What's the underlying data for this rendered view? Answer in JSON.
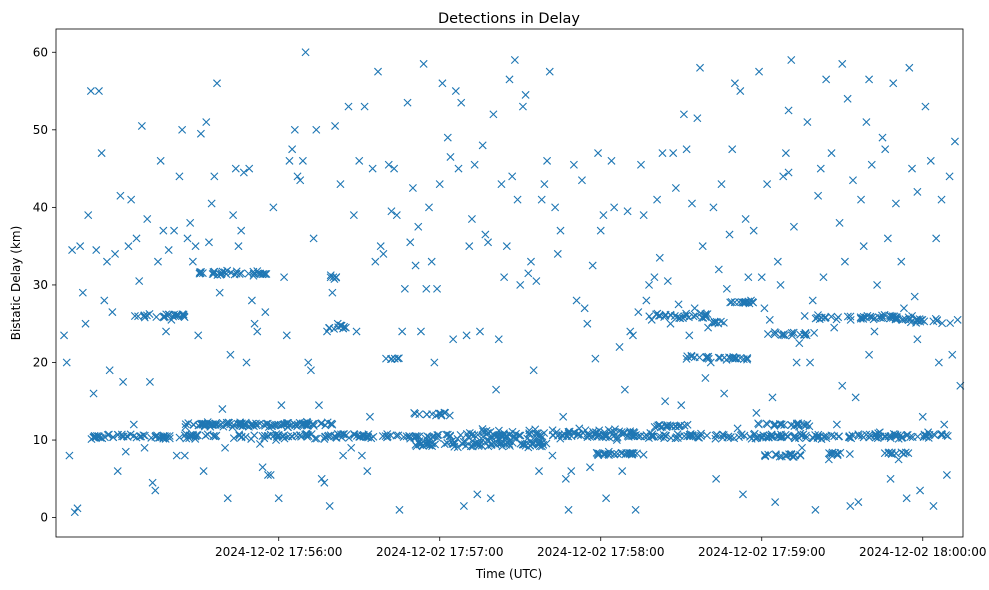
{
  "chart_data": {
    "type": "scatter",
    "title": "Detections in Delay",
    "xlabel": "Time (UTC)",
    "ylabel": "Bistatic Delay (km)",
    "marker": "x",
    "color": "#1f77b4",
    "xlim_seconds_from_17_55_00": [
      -23,
      315
    ],
    "ylim": [
      -2.5,
      63
    ],
    "x_ticks": [
      {
        "t": 60,
        "label": "2024-12-02 17:56:00"
      },
      {
        "t": 120,
        "label": "2024-12-02 17:57:00"
      },
      {
        "t": 180,
        "label": "2024-12-02 17:58:00"
      },
      {
        "t": 240,
        "label": "2024-12-02 17:59:00"
      },
      {
        "t": 300,
        "label": "2024-12-02 18:00:00"
      }
    ],
    "y_ticks": [
      0,
      10,
      20,
      30,
      40,
      50,
      60
    ],
    "bands": [
      {
        "t0": -10,
        "t1": 310,
        "y": 10.5,
        "jitter": 0.4,
        "count": 420
      },
      {
        "t0": 25,
        "t1": 80,
        "y": 12.0,
        "jitter": 0.4,
        "count": 110
      },
      {
        "t0": 110,
        "t1": 160,
        "y": 9.5,
        "jitter": 0.5,
        "count": 90
      },
      {
        "t0": 130,
        "t1": 200,
        "y": 11.0,
        "jitter": 0.5,
        "count": 60
      },
      {
        "t0": 178,
        "t1": 196,
        "y": 8.2,
        "jitter": 0.2,
        "count": 30
      },
      {
        "t0": 200,
        "t1": 213,
        "y": 11.8,
        "jitter": 0.2,
        "count": 20
      },
      {
        "t0": 238,
        "t1": 258,
        "y": 12.0,
        "jitter": 0.3,
        "count": 25
      },
      {
        "t0": 240,
        "t1": 255,
        "y": 8.0,
        "jitter": 0.3,
        "count": 20
      },
      {
        "t0": 265,
        "t1": 275,
        "y": 8.2,
        "jitter": 0.2,
        "count": 10
      },
      {
        "t0": 285,
        "t1": 295,
        "y": 8.3,
        "jitter": 0.2,
        "count": 10
      },
      {
        "t0": 5,
        "t1": 25,
        "y": 26.0,
        "jitter": 0.4,
        "count": 25
      },
      {
        "t0": 28,
        "t1": 56,
        "y": 31.5,
        "jitter": 0.4,
        "count": 35
      },
      {
        "t0": 78,
        "t1": 85,
        "y": 24.5,
        "jitter": 0.3,
        "count": 10
      },
      {
        "t0": 78,
        "t1": 83,
        "y": 31.0,
        "jitter": 0.3,
        "count": 6
      },
      {
        "t0": 100,
        "t1": 105,
        "y": 20.5,
        "jitter": 0.2,
        "count": 5
      },
      {
        "t0": 110,
        "t1": 125,
        "y": 13.3,
        "jitter": 0.3,
        "count": 14
      },
      {
        "t0": 198,
        "t1": 220,
        "y": 26.0,
        "jitter": 0.4,
        "count": 30
      },
      {
        "t0": 210,
        "t1": 225,
        "y": 20.6,
        "jitter": 0.3,
        "count": 15
      },
      {
        "t0": 220,
        "t1": 226,
        "y": 25.2,
        "jitter": 0.2,
        "count": 8
      },
      {
        "t0": 228,
        "t1": 240,
        "y": 27.8,
        "jitter": 0.2,
        "count": 14
      },
      {
        "t0": 225,
        "t1": 236,
        "y": 20.5,
        "jitter": 0.3,
        "count": 15
      },
      {
        "t0": 242,
        "t1": 260,
        "y": 23.7,
        "jitter": 0.3,
        "count": 18
      },
      {
        "t0": 260,
        "t1": 298,
        "y": 25.8,
        "jitter": 0.4,
        "count": 50
      },
      {
        "t0": 295,
        "t1": 312,
        "y": 25.3,
        "jitter": 0.4,
        "count": 15
      }
    ],
    "scatter_points": [
      [
        -20,
        23.5
      ],
      [
        -19,
        20
      ],
      [
        -18,
        8
      ],
      [
        -17,
        34.5
      ],
      [
        -16,
        0.7
      ],
      [
        -15,
        1.2
      ],
      [
        -14,
        35
      ],
      [
        -13,
        29
      ],
      [
        -12,
        25
      ],
      [
        -11,
        39
      ],
      [
        -10,
        55
      ],
      [
        -9,
        16
      ],
      [
        -8,
        34.5
      ],
      [
        -7,
        55
      ],
      [
        -6,
        47
      ],
      [
        -5,
        28
      ],
      [
        -4,
        33
      ],
      [
        -3,
        19
      ],
      [
        -2,
        26.5
      ],
      [
        -1,
        34
      ],
      [
        0,
        6
      ],
      [
        1,
        41.5
      ],
      [
        2,
        17.5
      ],
      [
        3,
        8.5
      ],
      [
        4,
        35
      ],
      [
        5,
        41
      ],
      [
        6,
        12
      ],
      [
        7,
        36
      ],
      [
        8,
        30.5
      ],
      [
        9,
        50.5
      ],
      [
        10,
        9
      ],
      [
        11,
        38.5
      ],
      [
        12,
        17.5
      ],
      [
        13,
        4.5
      ],
      [
        14,
        3.5
      ],
      [
        15,
        33
      ],
      [
        16,
        46
      ],
      [
        17,
        37
      ],
      [
        18,
        24
      ],
      [
        19,
        34.5
      ],
      [
        20,
        25.5
      ],
      [
        21,
        37
      ],
      [
        22,
        8
      ],
      [
        23,
        44
      ],
      [
        24,
        50
      ],
      [
        25,
        8
      ],
      [
        26,
        36
      ],
      [
        27,
        38
      ],
      [
        28,
        33
      ],
      [
        29,
        35
      ],
      [
        30,
        23.5
      ],
      [
        31,
        49.5
      ],
      [
        32,
        6
      ],
      [
        33,
        51
      ],
      [
        34,
        35.5
      ],
      [
        35,
        40.5
      ],
      [
        36,
        44
      ],
      [
        37,
        56
      ],
      [
        38,
        29
      ],
      [
        39,
        14
      ],
      [
        40,
        9
      ],
      [
        41,
        2.5
      ],
      [
        42,
        21
      ],
      [
        43,
        39
      ],
      [
        44,
        45
      ],
      [
        45,
        35
      ],
      [
        46,
        37
      ],
      [
        47,
        44.5
      ],
      [
        48,
        20
      ],
      [
        49,
        45
      ],
      [
        50,
        28
      ],
      [
        51,
        25
      ],
      [
        52,
        24
      ],
      [
        53,
        9.5
      ],
      [
        54,
        6.5
      ],
      [
        55,
        26.5
      ],
      [
        56,
        5.5
      ],
      [
        57,
        5.5
      ],
      [
        58,
        40
      ],
      [
        59,
        10
      ],
      [
        60,
        2.5
      ],
      [
        61,
        14.5
      ],
      [
        62,
        31
      ],
      [
        63,
        23.5
      ],
      [
        64,
        46
      ],
      [
        65,
        47.5
      ],
      [
        66,
        50
      ],
      [
        67,
        44
      ],
      [
        68,
        43.5
      ],
      [
        69,
        46
      ],
      [
        70,
        60
      ],
      [
        71,
        20
      ],
      [
        72,
        19
      ],
      [
        73,
        36
      ],
      [
        74,
        50
      ],
      [
        75,
        14.5
      ],
      [
        76,
        5
      ],
      [
        77,
        4.5
      ],
      [
        78,
        24
      ],
      [
        79,
        1.5
      ],
      [
        80,
        29
      ],
      [
        81,
        50.5
      ],
      [
        82,
        25
      ],
      [
        83,
        43
      ],
      [
        84,
        8
      ],
      [
        85,
        24.5
      ],
      [
        86,
        53
      ],
      [
        87,
        9
      ],
      [
        88,
        39
      ],
      [
        89,
        24
      ],
      [
        90,
        46
      ],
      [
        91,
        8
      ],
      [
        92,
        53
      ],
      [
        93,
        6
      ],
      [
        94,
        13
      ],
      [
        95,
        45
      ],
      [
        96,
        33
      ],
      [
        97,
        57.5
      ],
      [
        98,
        35
      ],
      [
        99,
        34
      ],
      [
        100,
        20.5
      ],
      [
        101,
        45.5
      ],
      [
        102,
        39.5
      ],
      [
        103,
        45
      ],
      [
        104,
        39
      ],
      [
        105,
        1
      ],
      [
        106,
        24
      ],
      [
        107,
        29.5
      ],
      [
        108,
        53.5
      ],
      [
        109,
        35.5
      ],
      [
        110,
        42.5
      ],
      [
        111,
        32.5
      ],
      [
        112,
        37.5
      ],
      [
        113,
        24
      ],
      [
        114,
        58.5
      ],
      [
        115,
        29.5
      ],
      [
        116,
        40
      ],
      [
        117,
        33
      ],
      [
        118,
        20
      ],
      [
        119,
        29.5
      ],
      [
        120,
        43
      ],
      [
        121,
        56
      ],
      [
        122,
        13.5
      ],
      [
        123,
        49
      ],
      [
        124,
        46.5
      ],
      [
        125,
        23
      ],
      [
        126,
        55
      ],
      [
        127,
        45
      ],
      [
        128,
        53.5
      ],
      [
        129,
        1.5
      ],
      [
        130,
        23.5
      ],
      [
        131,
        35
      ],
      [
        132,
        38.5
      ],
      [
        133,
        45.5
      ],
      [
        134,
        3
      ],
      [
        135,
        24
      ],
      [
        136,
        48
      ],
      [
        137,
        36.5
      ],
      [
        138,
        35.5
      ],
      [
        139,
        2.5
      ],
      [
        140,
        52
      ],
      [
        141,
        16.5
      ],
      [
        142,
        23
      ],
      [
        143,
        43
      ],
      [
        144,
        31
      ],
      [
        145,
        35
      ],
      [
        146,
        56.5
      ],
      [
        147,
        44
      ],
      [
        148,
        59
      ],
      [
        149,
        41
      ],
      [
        150,
        30
      ],
      [
        151,
        53
      ],
      [
        152,
        54.5
      ],
      [
        153,
        31.5
      ],
      [
        154,
        33
      ],
      [
        155,
        19
      ],
      [
        156,
        30.5
      ],
      [
        157,
        6
      ],
      [
        158,
        41
      ],
      [
        159,
        43
      ],
      [
        160,
        46
      ],
      [
        161,
        57.5
      ],
      [
        162,
        8
      ],
      [
        163,
        40
      ],
      [
        164,
        34
      ],
      [
        165,
        37
      ],
      [
        166,
        13
      ],
      [
        167,
        5
      ],
      [
        168,
        1
      ],
      [
        169,
        6
      ],
      [
        170,
        45.5
      ],
      [
        171,
        28
      ],
      [
        172,
        11.5
      ],
      [
        173,
        43.5
      ],
      [
        174,
        27
      ],
      [
        175,
        25
      ],
      [
        176,
        6.5
      ],
      [
        177,
        32.5
      ],
      [
        178,
        20.5
      ],
      [
        179,
        47
      ],
      [
        180,
        37
      ],
      [
        181,
        39
      ],
      [
        182,
        2.5
      ],
      [
        183,
        8.5
      ],
      [
        184,
        46
      ],
      [
        185,
        40
      ],
      [
        186,
        10
      ],
      [
        187,
        22
      ],
      [
        188,
        6
      ],
      [
        189,
        16.5
      ],
      [
        190,
        39.5
      ],
      [
        191,
        24
      ],
      [
        192,
        23.5
      ],
      [
        193,
        1
      ],
      [
        194,
        26.5
      ],
      [
        195,
        45.5
      ],
      [
        196,
        39
      ],
      [
        197,
        28
      ],
      [
        198,
        30
      ],
      [
        199,
        25.5
      ],
      [
        200,
        31
      ],
      [
        201,
        41
      ],
      [
        202,
        33.5
      ],
      [
        203,
        47
      ],
      [
        204,
        15
      ],
      [
        205,
        30.5
      ],
      [
        206,
        25
      ],
      [
        207,
        47
      ],
      [
        208,
        42.5
      ],
      [
        209,
        27.5
      ],
      [
        210,
        14.5
      ],
      [
        211,
        52
      ],
      [
        212,
        47.5
      ],
      [
        213,
        23.5
      ],
      [
        214,
        40.5
      ],
      [
        215,
        27
      ],
      [
        216,
        51.5
      ],
      [
        217,
        58
      ],
      [
        218,
        35
      ],
      [
        219,
        18
      ],
      [
        220,
        24.5
      ],
      [
        221,
        20
      ],
      [
        222,
        40
      ],
      [
        223,
        5
      ],
      [
        224,
        32
      ],
      [
        225,
        43
      ],
      [
        226,
        16
      ],
      [
        227,
        29.5
      ],
      [
        228,
        36.5
      ],
      [
        229,
        47.5
      ],
      [
        230,
        56
      ],
      [
        231,
        11.5
      ],
      [
        232,
        55
      ],
      [
        233,
        3
      ],
      [
        234,
        38.5
      ],
      [
        235,
        31
      ],
      [
        236,
        28
      ],
      [
        237,
        37
      ],
      [
        238,
        13.5
      ],
      [
        239,
        57.5
      ],
      [
        240,
        31
      ],
      [
        241,
        27
      ],
      [
        242,
        43
      ],
      [
        243,
        25.5
      ],
      [
        244,
        15.5
      ],
      [
        245,
        2
      ],
      [
        246,
        33
      ],
      [
        247,
        30
      ],
      [
        248,
        44
      ],
      [
        249,
        47
      ],
      [
        250,
        52.5
      ],
      [
        251,
        59
      ],
      [
        252,
        37.5
      ],
      [
        253,
        20
      ],
      [
        254,
        22.5
      ],
      [
        255,
        9
      ],
      [
        256,
        26
      ],
      [
        257,
        51
      ],
      [
        258,
        20
      ],
      [
        259,
        28
      ],
      [
        260,
        1
      ],
      [
        261,
        41.5
      ],
      [
        262,
        45
      ],
      [
        263,
        31
      ],
      [
        264,
        56.5
      ],
      [
        265,
        7.5
      ],
      [
        266,
        47
      ],
      [
        267,
        24.5
      ],
      [
        268,
        12
      ],
      [
        269,
        38
      ],
      [
        270,
        17
      ],
      [
        271,
        33
      ],
      [
        272,
        54
      ],
      [
        273,
        1.5
      ],
      [
        274,
        43.5
      ],
      [
        275,
        15.5
      ],
      [
        276,
        2
      ],
      [
        277,
        41
      ],
      [
        278,
        35
      ],
      [
        279,
        51
      ],
      [
        280,
        21
      ],
      [
        281,
        45.5
      ],
      [
        282,
        24
      ],
      [
        283,
        30
      ],
      [
        284,
        11
      ],
      [
        285,
        49
      ],
      [
        286,
        47.5
      ],
      [
        287,
        36
      ],
      [
        288,
        5
      ],
      [
        289,
        56
      ],
      [
        290,
        40.5
      ],
      [
        291,
        7.5
      ],
      [
        292,
        33
      ],
      [
        293,
        27
      ],
      [
        294,
        2.5
      ],
      [
        295,
        58
      ],
      [
        296,
        45
      ],
      [
        297,
        28.5
      ],
      [
        298,
        23
      ],
      [
        299,
        3.5
      ],
      [
        300,
        13
      ],
      [
        301,
        53
      ],
      [
        302,
        11
      ],
      [
        303,
        46
      ],
      [
        304,
        1.5
      ],
      [
        305,
        36
      ],
      [
        306,
        20
      ],
      [
        307,
        41
      ],
      [
        308,
        12
      ],
      [
        309,
        5.5
      ],
      [
        310,
        44
      ],
      [
        311,
        21
      ],
      [
        312,
        48.5
      ],
      [
        313,
        25.5
      ],
      [
        314,
        17
      ],
      [
        270,
        58.5
      ],
      [
        280,
        56.5
      ],
      [
        298,
        42
      ],
      [
        250,
        44.5
      ],
      [
        230,
        20.5
      ]
    ]
  }
}
